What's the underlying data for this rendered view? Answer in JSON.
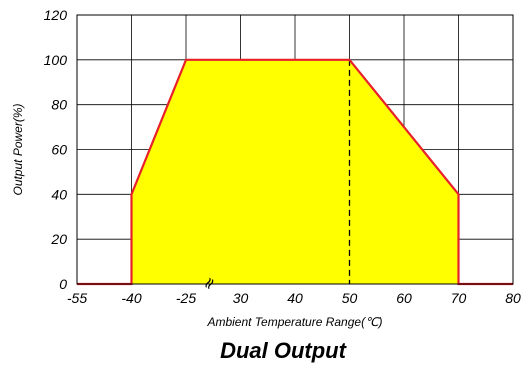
{
  "chart_data": {
    "type": "area",
    "title": "Dual Output",
    "xlabel": "Ambient Temperature Range(℃)",
    "ylabel": "Output Power(%)",
    "x_ticks": [
      "-55",
      "-40",
      "-25",
      "30",
      "40",
      "50",
      "60",
      "70",
      "80"
    ],
    "y_ticks": [
      0,
      20,
      40,
      60,
      80,
      100,
      120
    ],
    "ylim": [
      0,
      120
    ],
    "grid": true,
    "axis_break_mark": "≈",
    "series": [
      {
        "points": [
          {
            "x": "-55",
            "y": 0
          },
          {
            "x": "-40",
            "y": 0
          },
          {
            "x": "-40",
            "y": 40
          },
          {
            "x": "-25",
            "y": 100
          },
          {
            "x": "50",
            "y": 100
          },
          {
            "x": "70",
            "y": 40
          },
          {
            "x": "70",
            "y": 0
          },
          {
            "x": "80",
            "y": 0
          }
        ]
      }
    ],
    "reference_line": {
      "x": "50",
      "style": "dashed"
    },
    "colors": {
      "fill": "#ffff00",
      "line": "#e8202a",
      "grid": "#000000",
      "reference": "#000000"
    }
  }
}
